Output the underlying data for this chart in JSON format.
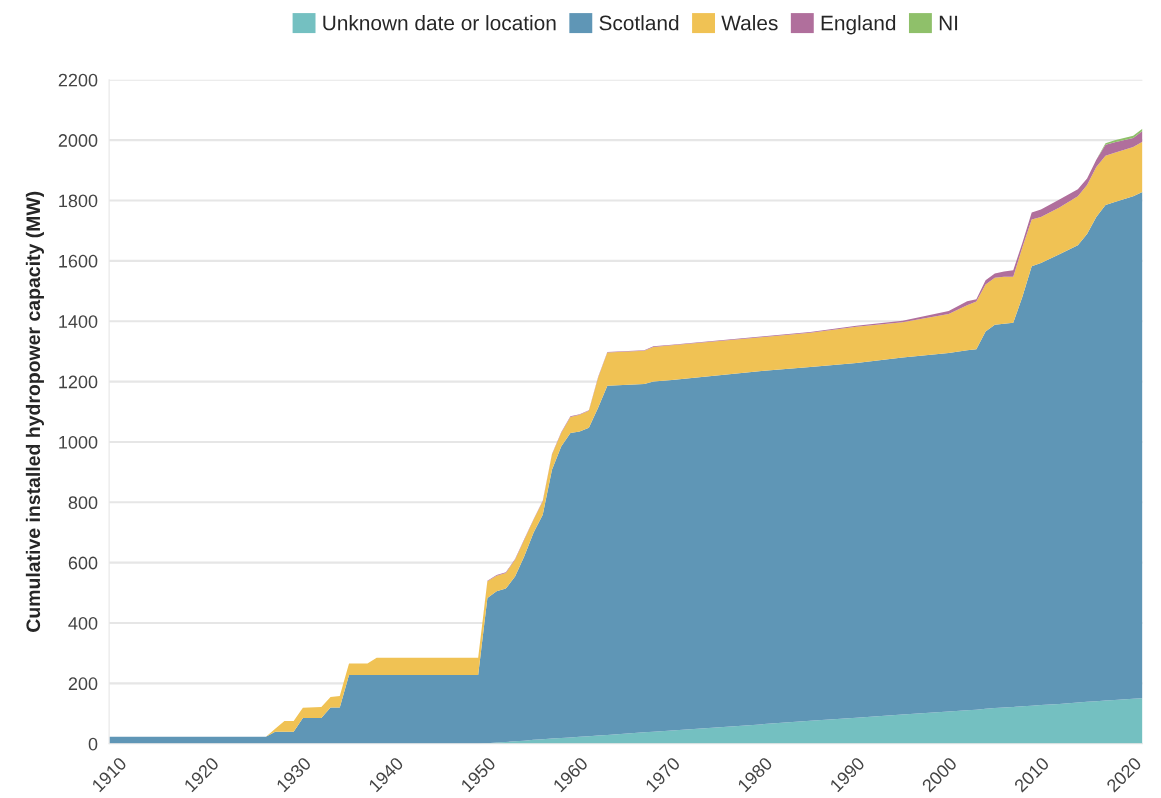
{
  "chart_data": {
    "type": "area",
    "stacked": true,
    "ylabel": "Cumulative installed hydropower capacity (MW)",
    "x": [
      1909,
      1926,
      1927,
      1928,
      1929,
      1930,
      1932,
      1933,
      1934,
      1935,
      1937,
      1938,
      1949,
      1950,
      1951,
      1952,
      1953,
      1954,
      1955,
      1956,
      1957,
      1958,
      1959,
      1960,
      1961,
      1962,
      1963,
      1967,
      1968,
      1970,
      1980,
      1985,
      1990,
      1995,
      2000,
      2002,
      2003,
      2004,
      2005,
      2006,
      2007,
      2008,
      2009,
      2010,
      2012,
      2014,
      2015,
      2016,
      2017,
      2018,
      2020,
      2021
    ],
    "series": [
      {
        "name": "Unknown date or location",
        "color": "#74c0c1",
        "values": [
          0,
          0,
          0,
          0,
          0,
          0,
          0,
          0,
          0,
          0,
          0,
          0,
          0,
          2,
          4,
          6,
          8,
          10,
          13,
          15,
          17,
          19,
          21,
          23,
          25,
          27,
          29,
          38,
          40,
          44,
          65,
          76,
          86,
          97,
          107,
          111,
          113,
          116,
          118,
          120,
          122,
          124,
          126,
          128,
          132,
          137,
          139,
          141,
          143,
          145,
          149,
          151
        ]
      },
      {
        "name": "Scotland",
        "color": "#5f96b6",
        "values": [
          23,
          23,
          40,
          40,
          40,
          85,
          85,
          120,
          120,
          228,
          228,
          228,
          228,
          481,
          501,
          508,
          546,
          611,
          686,
          744,
          891,
          966,
          1009,
          1012,
          1022,
          1086,
          1157,
          1154,
          1160,
          1161,
          1171,
          1172,
          1176,
          1183,
          1188,
          1193,
          1194,
          1250,
          1270,
          1272,
          1273,
          1358,
          1456,
          1465,
          1490,
          1515,
          1550,
          1604,
          1642,
          1650,
          1665,
          1677
        ]
      },
      {
        "name": "Wales",
        "color": "#f0c254",
        "values": [
          0,
          0,
          10,
          35,
          35,
          34,
          37,
          35,
          38,
          38,
          38,
          57,
          57,
          55,
          52,
          52,
          56,
          55,
          43,
          44,
          50,
          45,
          53,
          55,
          56,
          100,
          110,
          110,
          115,
          115,
          112,
          114,
          120,
          117,
          129,
          149,
          158,
          156,
          156,
          155,
          152,
          164,
          155,
          152,
          155,
          162,
          162,
          166,
          163,
          163,
          163,
          167
        ]
      },
      {
        "name": "England",
        "color": "#b06f9c",
        "values": [
          0,
          0,
          0,
          0,
          0,
          0,
          0,
          0,
          0,
          0,
          0,
          0,
          0,
          2,
          2,
          2,
          2,
          2,
          2,
          2,
          2,
          2,
          2,
          2,
          2,
          2,
          2,
          2,
          2,
          2,
          2,
          2,
          3,
          5,
          10,
          13,
          8,
          14,
          14,
          18,
          22,
          15,
          23,
          25,
          26,
          23,
          22,
          24,
          37,
          35,
          30,
          35
        ]
      },
      {
        "name": "NI",
        "color": "#8fc06a",
        "values": [
          0,
          0,
          0,
          0,
          0,
          0,
          0,
          0,
          0,
          0,
          0,
          0,
          0,
          0,
          0,
          0,
          0,
          0,
          0,
          0,
          0,
          0,
          0,
          0,
          0,
          0,
          0,
          0,
          0,
          0,
          0,
          0,
          0,
          0,
          0,
          0,
          0,
          0,
          0,
          0,
          0,
          0,
          0,
          0,
          0,
          0,
          0,
          0,
          5,
          7,
          8,
          8
        ]
      }
    ],
    "xlim": [
      1909,
      2021
    ],
    "ylim": [
      0,
      2200
    ],
    "xticks": [
      1910,
      1920,
      1930,
      1940,
      1950,
      1960,
      1970,
      1980,
      1990,
      2000,
      2010,
      2020
    ],
    "yticks": [
      0,
      200,
      400,
      600,
      800,
      1000,
      1200,
      1400,
      1600,
      1800,
      2000,
      2200
    ],
    "grid": "y",
    "legend": "top"
  }
}
